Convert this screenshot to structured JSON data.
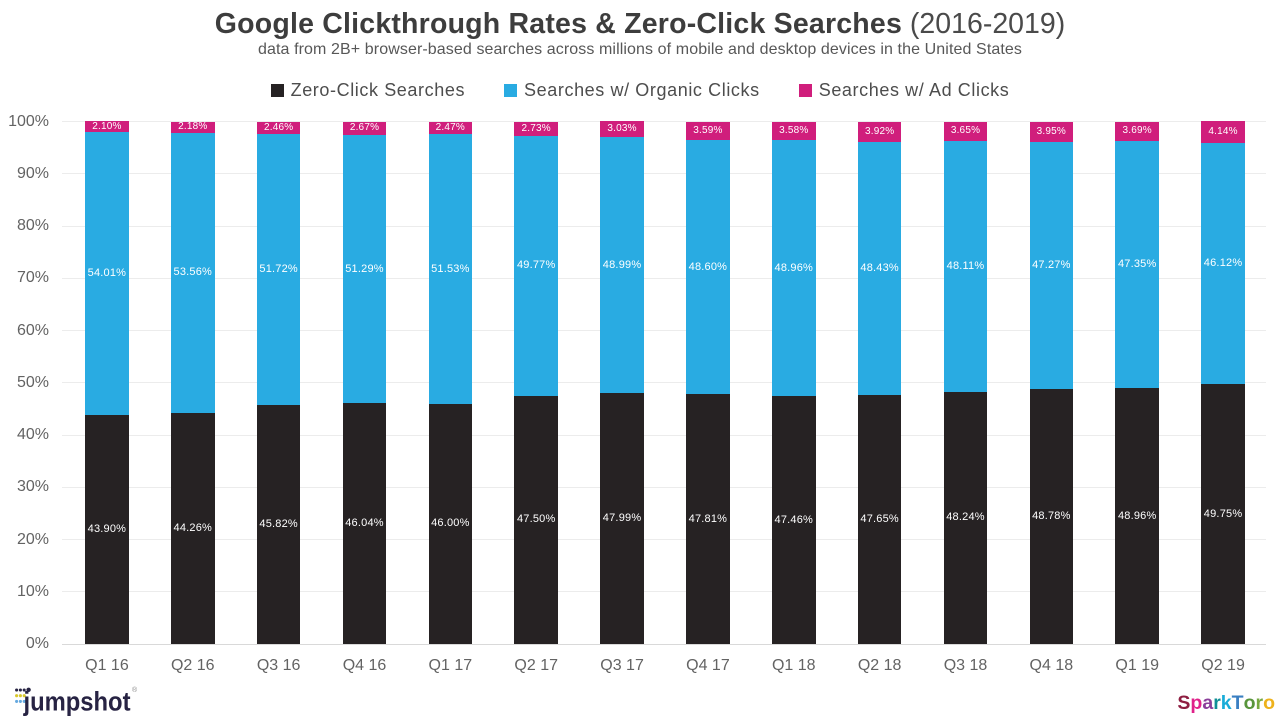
{
  "header": {
    "title_main": "Google Clickthrough Rates & Zero-Click Searches",
    "title_period": " (2016-2019)",
    "subtitle": "data from 2B+ browser-based searches across millions of mobile and desktop devices in the United States"
  },
  "legend": [
    {
      "label": "Zero-Click Searches",
      "color": "#262223"
    },
    {
      "label": "Searches w/ Organic Clicks",
      "color": "#29abe2"
    },
    {
      "label": "Searches w/ Ad Clicks",
      "color": "#d01e7c"
    }
  ],
  "chart_data": {
    "type": "bar",
    "stacked": true,
    "title": "Google Clickthrough Rates & Zero-Click Searches (2016-2019)",
    "subtitle": "data from 2B+ browser-based searches across millions of mobile and desktop devices in the United States",
    "categories": [
      "Q1 16",
      "Q2 16",
      "Q3 16",
      "Q4 16",
      "Q1 17",
      "Q2 17",
      "Q3 17",
      "Q4 17",
      "Q1 18",
      "Q2 18",
      "Q3 18",
      "Q4 18",
      "Q1 19",
      "Q2 19"
    ],
    "series": [
      {
        "name": "Zero-Click Searches",
        "color": "#262223",
        "label_size": "normal",
        "values": [
          43.9,
          44.26,
          45.82,
          46.04,
          46.0,
          47.5,
          47.99,
          47.81,
          47.46,
          47.65,
          48.24,
          48.78,
          48.96,
          49.75
        ]
      },
      {
        "name": "Searches w/ Organic Clicks",
        "color": "#29abe2",
        "label_size": "normal",
        "values": [
          54.01,
          53.56,
          51.72,
          51.29,
          51.53,
          49.77,
          48.99,
          48.6,
          48.96,
          48.43,
          48.11,
          47.27,
          47.35,
          46.12
        ]
      },
      {
        "name": "Searches w/ Ad Clicks",
        "color": "#d01e7c",
        "label_size": "small",
        "values": [
          2.1,
          2.18,
          2.46,
          2.67,
          2.47,
          2.73,
          3.03,
          3.59,
          3.58,
          3.92,
          3.65,
          3.95,
          3.69,
          4.14
        ]
      }
    ],
    "value_suffix": "%",
    "value_decimals": 2,
    "xlabel": "",
    "ylabel": "",
    "ylim": [
      0,
      100
    ],
    "y_tick_step": 10,
    "y_tick_suffix": "%",
    "grid": true,
    "legend_position": "top"
  },
  "footer": {
    "jumpshot": {
      "text": "jumpshot",
      "registered_mark": "®",
      "text_color": "#272343",
      "dot_colors": {
        "row1": "#272343",
        "row2": "#d8c72b",
        "row3": "#65a9e0"
      }
    },
    "sparktoro": {
      "letters": [
        {
          "char": "S",
          "color": "#8e1e41"
        },
        {
          "char": "p",
          "color": "#e0218a"
        },
        {
          "char": "a",
          "color": "#8b3f9b"
        },
        {
          "char": "r",
          "color": "#0f8f96"
        },
        {
          "char": "k",
          "color": "#19acd8"
        },
        {
          "char": "T",
          "color": "#3a7fc2"
        },
        {
          "char": "o",
          "color": "#58953b"
        },
        {
          "char": "r",
          "color": "#76a83f"
        },
        {
          "char": "o",
          "color": "#eeb21c"
        }
      ]
    }
  }
}
